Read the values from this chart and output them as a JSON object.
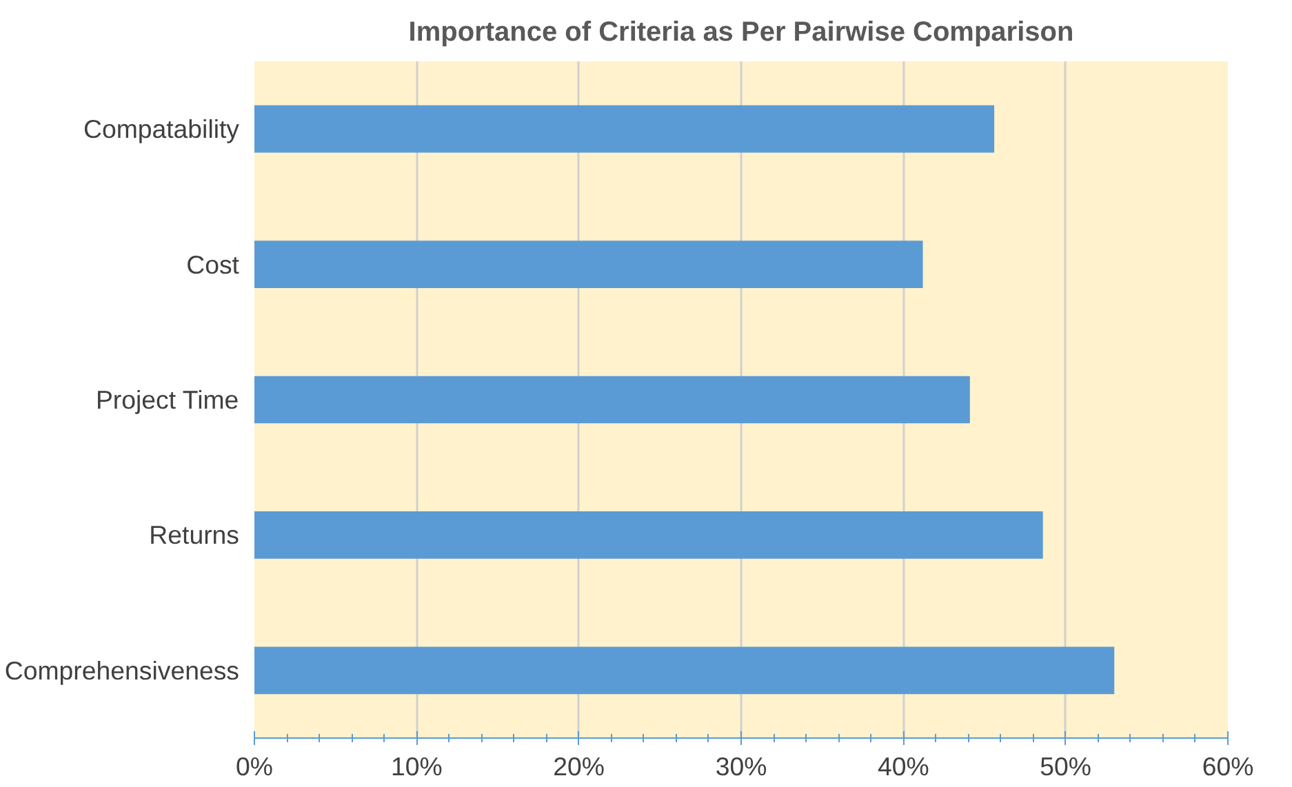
{
  "chart_data": {
    "type": "bar",
    "orientation": "horizontal",
    "title": "Importance of Criteria as Per Pairwise Comparison",
    "categories": [
      "Compatability",
      "Cost",
      "Project Time",
      "Returns",
      "Comprehensiveness"
    ],
    "values": [
      45.6,
      41.2,
      44.1,
      48.6,
      53.0
    ],
    "color": "#5b9bd5",
    "xlim": [
      0,
      60
    ],
    "xticks": [
      {
        "value": 0,
        "label": "0%"
      },
      {
        "value": 2,
        "label": null
      },
      {
        "value": 4,
        "label": null
      },
      {
        "value": 6,
        "label": null
      },
      {
        "value": 8,
        "label": null
      },
      {
        "value": 10,
        "label": "10%"
      },
      {
        "value": 12,
        "label": null
      },
      {
        "value": 14,
        "label": null
      },
      {
        "value": 16,
        "label": null
      },
      {
        "value": 18,
        "label": null
      },
      {
        "value": 20,
        "label": "20%"
      },
      {
        "value": 22,
        "label": null
      },
      {
        "value": 24,
        "label": null
      },
      {
        "value": 26,
        "label": null
      },
      {
        "value": 28,
        "label": null
      },
      {
        "value": 30,
        "label": "30%"
      },
      {
        "value": 32,
        "label": null
      },
      {
        "value": 34,
        "label": null
      },
      {
        "value": 36,
        "label": null
      },
      {
        "value": 38,
        "label": null
      },
      {
        "value": 40,
        "label": "40%"
      },
      {
        "value": 42,
        "label": null
      },
      {
        "value": 44,
        "label": null
      },
      {
        "value": 46,
        "label": null
      },
      {
        "value": 48,
        "label": null
      },
      {
        "value": 50,
        "label": "50%"
      },
      {
        "value": 52,
        "label": null
      },
      {
        "value": 54,
        "label": null
      },
      {
        "value": 56,
        "label": null
      },
      {
        "value": 58,
        "label": null
      },
      {
        "value": 60,
        "label": "60%"
      }
    ],
    "grid": "x"
  }
}
